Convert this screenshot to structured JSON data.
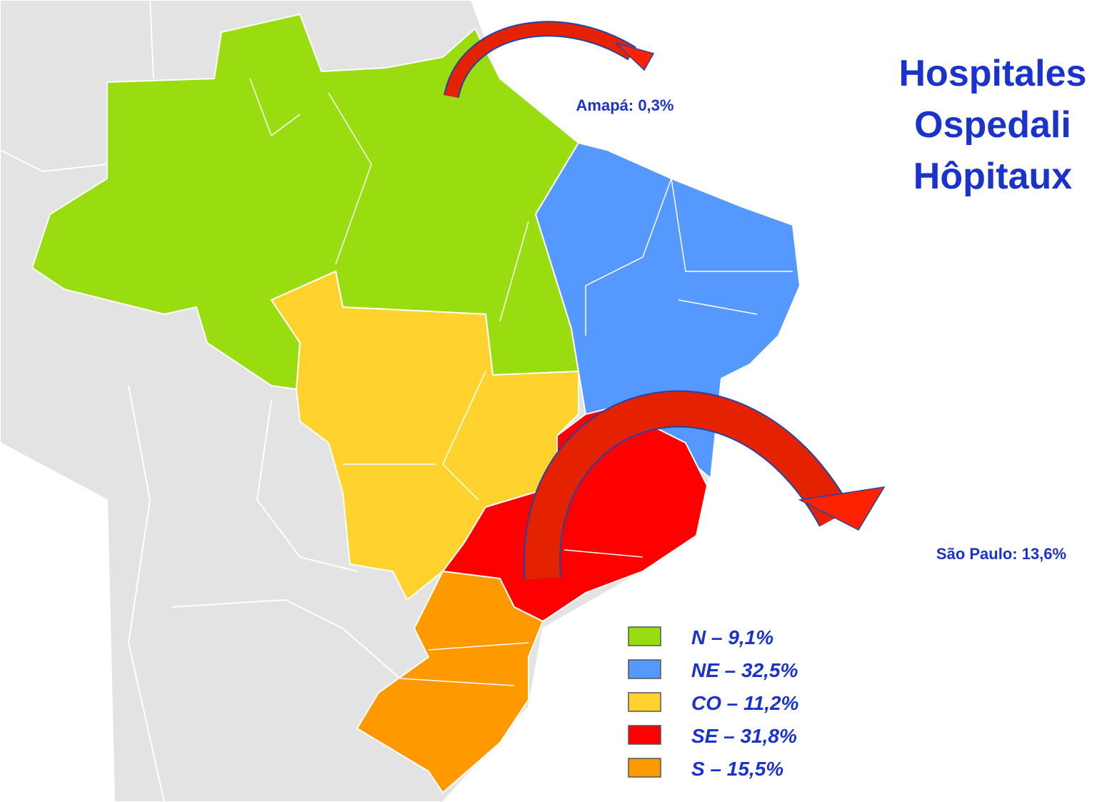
{
  "title": [
    "Hospitales",
    "Ospedali",
    "Hôpitaux"
  ],
  "callouts": [
    "Amapá: 0,3%",
    "São Paulo: 13,6%"
  ],
  "legend": {
    "items": [
      {
        "label": "N – 9,1%",
        "color": "#99dd11"
      },
      {
        "label": "NE – 32,5%",
        "color": "#5599ff"
      },
      {
        "label": "CO – 11,2%",
        "color": "#ffd22e"
      },
      {
        "label": "SE – 31,8%",
        "color": "#ff0000"
      },
      {
        "label": "S – 15,5%",
        "color": "#ff9900"
      }
    ]
  }
}
